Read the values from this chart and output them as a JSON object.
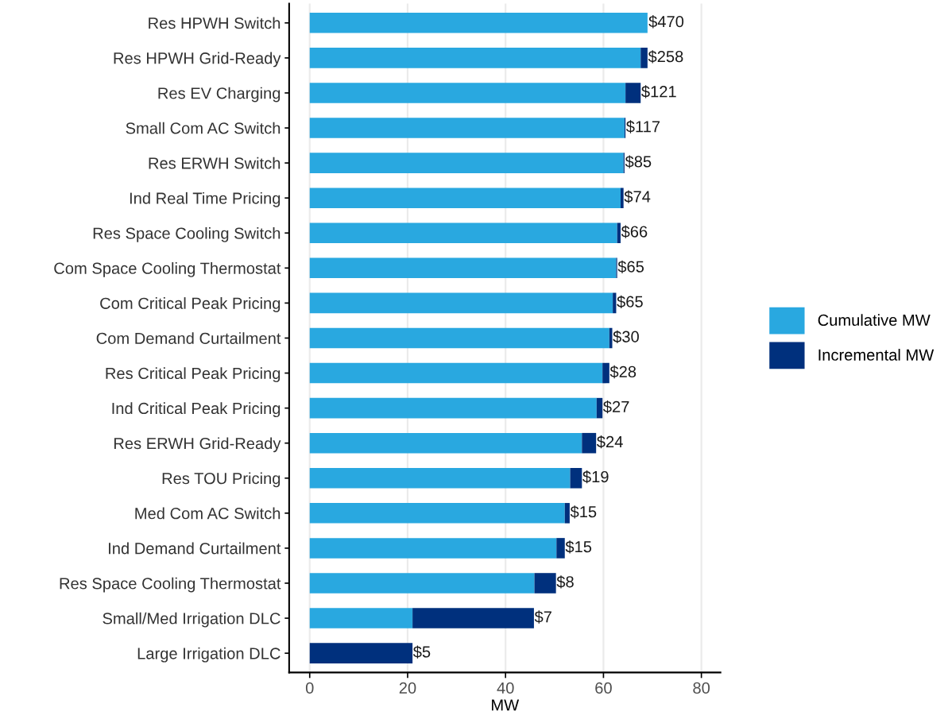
{
  "chart_data": {
    "type": "bar",
    "orientation": "horizontal",
    "stacked": true,
    "xlabel": "MW",
    "categories": [
      "Res HPWH Switch",
      "Res HPWH Grid-Ready",
      "Res EV Charging",
      "Small Com AC Switch",
      "Res ERWH Switch",
      "Ind Real Time Pricing",
      "Res Space Cooling Switch",
      "Com Space Cooling Thermostat",
      "Com Critical Peak Pricing",
      "Com Demand Curtailment",
      "Res Critical Peak Pricing",
      "Ind Critical Peak Pricing",
      "Res ERWH Grid-Ready",
      "Res TOU Pricing",
      "Med Com AC Switch",
      "Ind Demand Curtailment",
      "Res Space Cooling Thermostat",
      "Small/Med Irrigation DLC",
      "Large Irrigation DLC"
    ],
    "series": [
      {
        "name": "Cumulative MW",
        "color": "#29a8e0",
        "values": [
          69.0,
          67.6,
          64.5,
          64.3,
          64.1,
          63.5,
          62.8,
          62.6,
          61.9,
          61.2,
          59.8,
          58.6,
          55.6,
          53.2,
          52.1,
          50.4,
          45.9,
          21.0,
          0
        ]
      },
      {
        "name": "Incremental MW",
        "color": "#00307d",
        "values": [
          null,
          1.4,
          3.1,
          0.2,
          0.2,
          0.6,
          0.7,
          0.2,
          0.7,
          0.6,
          1.4,
          1.2,
          2.9,
          2.4,
          1.0,
          1.7,
          4.4,
          24.8,
          21.0
        ]
      }
    ],
    "annotations": [
      {
        "text": "$470",
        "x": 69.1,
        "y": "Res HPWH Switch"
      },
      {
        "text": "$258",
        "x": 69.0,
        "y": "Res HPWH Grid-Ready"
      },
      {
        "text": "$121",
        "x": 67.6,
        "y": "Res EV Charging"
      },
      {
        "text": "$117",
        "x": 64.5,
        "y": "Small Com AC Switch"
      },
      {
        "text": "$85",
        "x": 64.3,
        "y": "Res ERWH Switch"
      },
      {
        "text": "$74",
        "x": 64.1,
        "y": "Ind Real Time Pricing"
      },
      {
        "text": "$66",
        "x": 63.5,
        "y": "Res Space Cooling Switch"
      },
      {
        "text": "$65",
        "x": 62.8,
        "y": "Com Space Cooling Thermostat"
      },
      {
        "text": "$65",
        "x": 62.6,
        "y": "Com Critical Peak Pricing"
      },
      {
        "text": "$30",
        "x": 61.8,
        "y": "Com Demand Curtailment"
      },
      {
        "text": "$28",
        "x": 61.2,
        "y": "Res Critical Peak Pricing"
      },
      {
        "text": "$27",
        "x": 59.8,
        "y": "Ind Critical Peak Pricing"
      },
      {
        "text": "$24",
        "x": 58.5,
        "y": "Res ERWH Grid-Ready"
      },
      {
        "text": "$19",
        "x": 55.6,
        "y": "Res TOU Pricing"
      },
      {
        "text": "$15",
        "x": 53.1,
        "y": "Med Com AC Switch"
      },
      {
        "text": "$15",
        "x": 52.1,
        "y": "Ind Demand Curtailment"
      },
      {
        "text": "$8",
        "x": 50.3,
        "y": "Res Space Cooling Thermostat"
      },
      {
        "text": "$7",
        "x": 45.8,
        "y": "Small/Med Irrigation DLC"
      },
      {
        "text": "$5",
        "x": 21.0,
        "y": "Large Irrigation DLC"
      }
    ],
    "xlim": [
      -4.2,
      83.9
    ],
    "xticks": [
      0,
      20,
      40,
      60,
      80
    ],
    "grid": "x",
    "legend": "right"
  }
}
